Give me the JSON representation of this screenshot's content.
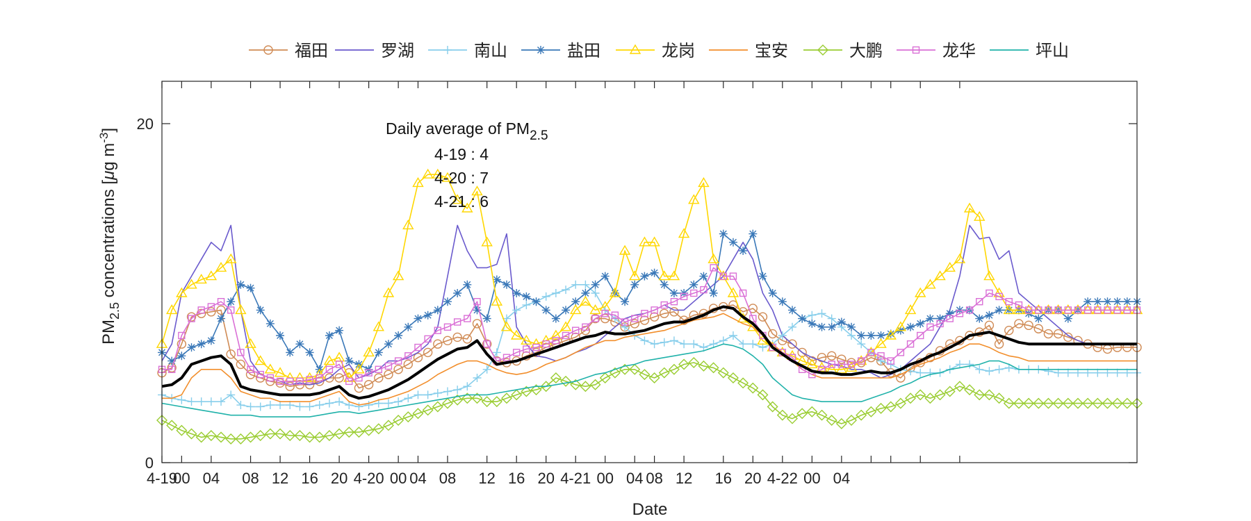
{
  "chart_data": {
    "type": "line",
    "xlabel": "Date",
    "ylabel_prefix": "PM",
    "ylabel_sub": "2.5",
    "ylabel_suffix": " concentrations [",
    "ylabel_unit_mu": "μ",
    "ylabel_unit_rest": "g m",
    "ylabel_unit_exp": "-3",
    "ylabel_close": "]",
    "ylim": [
      0,
      22.5
    ],
    "yticks": [
      0,
      20
    ],
    "ytick_labels": [
      "0",
      "20"
    ],
    "xlim": [
      0,
      99
    ],
    "x_step_hours": 1,
    "xtick_positions": [
      0,
      2,
      5,
      9,
      12,
      15,
      18,
      21,
      24,
      26,
      29,
      33,
      36,
      39,
      42,
      45,
      48,
      50,
      53,
      57,
      60,
      63,
      66,
      69,
      72,
      74,
      77,
      81
    ],
    "xtick_labels": [
      "4-19",
      "00",
      "04",
      "08",
      "12",
      "16",
      "20",
      "4-20",
      "00",
      "04",
      "08",
      "12",
      "16",
      "20",
      "4-21",
      "00",
      "04",
      "08",
      "12",
      "16",
      "20",
      "4-22",
      "00",
      "04",
      "",
      "",
      "",
      ""
    ],
    "annotation": {
      "line1_prefix": "Daily average of PM",
      "line1_sub": "2.5",
      "entries": [
        "4-19 : 4",
        "4-20 : 7",
        "4-21 : 6"
      ]
    },
    "series": [
      {
        "name": "福田",
        "color": "#D08B55",
        "marker": "circle",
        "marker_every": 1,
        "values": [
          5.3,
          5.6,
          7.0,
          8.6,
          8.8,
          8.9,
          9.0,
          6.4,
          5.8,
          5.2,
          5.0,
          4.8,
          4.7,
          4.5,
          4.6,
          4.6,
          4.8,
          5.0,
          5.0,
          5.3,
          4.4,
          4.6,
          5.0,
          5.2,
          5.5,
          5.8,
          6.2,
          6.5,
          7.0,
          7.2,
          7.4,
          7.3,
          8.2,
          7.0,
          6.0,
          5.9,
          6.0,
          6.3,
          6.5,
          6.8,
          7.0,
          7.2,
          7.4,
          7.8,
          8.5,
          8.5,
          8.3,
          8.0,
          8.2,
          8.4,
          8.6,
          8.8,
          8.9,
          8.4,
          8.7,
          8.8,
          9.1,
          9.2,
          9.3,
          8.9,
          9.1,
          8.6,
          7.6,
          7.2,
          7.0,
          6.5,
          6.0,
          6.2,
          6.3,
          6.1,
          5.9,
          5.9,
          6.2,
          6.0,
          5.3,
          5.0,
          5.6,
          5.9,
          6.2,
          6.6,
          7.0,
          7.2,
          7.5,
          7.7,
          8.1,
          7.0,
          7.8,
          8.2,
          8.1,
          7.9,
          7.6,
          7.6,
          7.4,
          7.2,
          7.0,
          6.8,
          6.7,
          6.8,
          6.8,
          6.8
        ]
      },
      {
        "name": "罗湖",
        "color": "#6A5ACD",
        "marker": "none",
        "values": [
          6.0,
          7.0,
          10.0,
          11.0,
          12.0,
          13.0,
          12.5,
          14.0,
          9.0,
          6.0,
          5.2,
          5.0,
          4.8,
          4.6,
          4.7,
          4.6,
          4.7,
          5.0,
          5.5,
          5.8,
          5.0,
          5.2,
          5.5,
          6.0,
          6.0,
          6.2,
          6.5,
          7.0,
          8.0,
          11.0,
          14.0,
          12.5,
          11.5,
          11.5,
          11.7,
          13.5,
          8.0,
          7.0,
          6.3,
          6.2,
          6.0,
          6.2,
          6.5,
          6.7,
          7.0,
          7.5,
          8.0,
          8.5,
          8.7,
          8.8,
          9.0,
          9.3,
          9.0,
          9.0,
          9.5,
          10.0,
          10.5,
          11.0,
          12.0,
          13.0,
          12.0,
          10.0,
          9.0,
          7.5,
          7.0,
          6.5,
          6.2,
          6.0,
          5.8,
          5.7,
          5.5,
          5.5,
          5.3,
          5.0,
          5.2,
          5.5,
          6.0,
          6.5,
          7.0,
          8.0,
          9.0,
          11.0,
          14.0,
          13.2,
          13.3,
          12.0,
          12.5,
          10.0,
          9.5,
          9.0,
          8.5,
          8.0,
          7.5,
          7.2,
          7.0,
          7.0,
          7.0,
          7.0,
          7.0,
          7.0
        ]
      },
      {
        "name": "南山",
        "color": "#87CEEB",
        "marker": "plus",
        "marker_every": 1,
        "values": [
          4.0,
          3.8,
          3.7,
          3.6,
          3.6,
          3.6,
          3.6,
          4.0,
          3.4,
          3.3,
          3.3,
          3.4,
          3.4,
          3.4,
          3.3,
          3.3,
          3.4,
          3.5,
          3.6,
          3.4,
          3.3,
          3.4,
          3.5,
          3.5,
          3.6,
          3.8,
          4.0,
          4.0,
          4.1,
          4.2,
          4.3,
          4.5,
          5.0,
          5.5,
          6.5,
          8.5,
          9.0,
          9.3,
          9.5,
          9.8,
          10.0,
          10.2,
          10.5,
          10.5,
          10.0,
          9.0,
          8.5,
          8.0,
          7.5,
          7.2,
          7.0,
          7.1,
          7.2,
          7.0,
          7.0,
          6.8,
          7.0,
          7.2,
          7.5,
          7.0,
          7.0,
          6.8,
          7.0,
          7.5,
          8.0,
          8.5,
          8.7,
          8.8,
          8.5,
          8.0,
          7.5,
          7.0,
          6.5,
          6.0,
          5.8,
          5.5,
          5.4,
          5.3,
          5.3,
          5.3,
          5.5,
          5.8,
          5.8,
          5.5,
          5.4,
          5.5,
          5.6,
          5.5,
          5.5,
          5.5,
          5.4,
          5.3,
          5.3,
          5.3,
          5.3,
          5.3,
          5.3,
          5.3,
          5.3,
          5.3
        ]
      },
      {
        "name": "盐田",
        "color": "#3A78B8",
        "marker": "star",
        "marker_every": 1,
        "values": [
          6.5,
          6.0,
          6.3,
          6.8,
          7.0,
          7.2,
          8.5,
          9.5,
          10.5,
          10.3,
          9.0,
          8.2,
          7.5,
          6.5,
          7.0,
          6.5,
          5.5,
          7.5,
          7.8,
          6.0,
          5.8,
          5.5,
          6.5,
          7.0,
          7.5,
          8.0,
          8.5,
          8.7,
          9.0,
          9.5,
          10.0,
          10.5,
          9.0,
          8.5,
          10.8,
          10.5,
          10.0,
          9.8,
          9.5,
          9.0,
          8.5,
          9.0,
          9.5,
          10.0,
          10.5,
          11.0,
          10.0,
          9.5,
          10.5,
          11.0,
          11.2,
          10.5,
          10.0,
          10.0,
          10.5,
          11.0,
          10.0,
          13.5,
          13.0,
          12.5,
          13.5,
          11.0,
          10.0,
          9.5,
          9.0,
          8.5,
          8.2,
          8.0,
          8.0,
          8.3,
          8.0,
          7.5,
          7.5,
          7.5,
          7.6,
          7.8,
          8.0,
          8.2,
          8.5,
          8.5,
          8.8,
          9.0,
          9.0,
          8.5,
          8.7,
          9.0,
          9.0,
          9.0,
          8.8,
          8.5,
          9.0,
          9.0,
          8.5,
          9.0,
          9.5,
          9.5,
          9.5,
          9.5,
          9.5,
          9.5
        ]
      },
      {
        "name": "龙岗",
        "color": "#FFD700",
        "marker": "triangle",
        "marker_every": 1,
        "values": [
          7.0,
          9.0,
          10.0,
          10.5,
          10.8,
          11.0,
          11.5,
          12.0,
          9.0,
          7.0,
          6.0,
          5.5,
          5.3,
          5.0,
          5.0,
          5.0,
          5.2,
          6.0,
          6.2,
          5.0,
          5.5,
          6.5,
          8.0,
          10.0,
          11.0,
          14.0,
          16.5,
          17.0,
          17.0,
          16.8,
          15.5,
          15.0,
          16.0,
          13.0,
          9.5,
          8.0,
          7.5,
          7.2,
          7.0,
          7.2,
          7.5,
          8.0,
          9.0,
          9.5,
          9.0,
          9.2,
          10.0,
          12.5,
          11.0,
          13.0,
          13.0,
          11.0,
          11.0,
          13.5,
          15.5,
          16.5,
          12.0,
          11.0,
          10.0,
          8.5,
          8.0,
          7.2,
          6.8,
          6.5,
          6.3,
          6.0,
          5.8,
          5.6,
          5.5,
          5.5,
          5.6,
          6.0,
          6.5,
          7.0,
          7.5,
          8.0,
          9.0,
          10.0,
          10.5,
          11.0,
          11.5,
          12.0,
          15.0,
          14.5,
          11.0,
          10.0,
          9.0,
          9.0,
          9.0,
          9.0,
          9.0,
          9.0,
          9.0,
          9.0,
          9.0,
          9.0,
          9.0,
          9.0,
          9.0,
          9.0
        ]
      },
      {
        "name": "宝安",
        "color": "#F28E2B",
        "marker": "none",
        "values": [
          3.8,
          3.8,
          4.0,
          5.0,
          5.5,
          5.5,
          5.5,
          5.0,
          4.2,
          4.0,
          3.8,
          3.8,
          3.6,
          3.6,
          3.6,
          3.6,
          3.8,
          4.0,
          4.2,
          3.6,
          3.4,
          3.5,
          3.7,
          3.8,
          4.0,
          4.2,
          4.5,
          4.8,
          5.2,
          5.5,
          5.8,
          6.0,
          6.0,
          5.8,
          5.5,
          5.3,
          5.2,
          5.3,
          5.5,
          5.8,
          6.0,
          6.2,
          6.5,
          6.8,
          7.0,
          7.2,
          7.2,
          7.4,
          7.5,
          7.6,
          7.7,
          7.8,
          8.0,
          8.2,
          8.4,
          8.5,
          8.6,
          8.8,
          8.5,
          8.2,
          8.0,
          7.5,
          7.0,
          6.5,
          6.0,
          5.5,
          5.2,
          5.0,
          5.0,
          5.0,
          5.0,
          5.0,
          5.0,
          5.0,
          5.0,
          5.2,
          5.5,
          5.8,
          6.0,
          6.2,
          6.5,
          6.7,
          7.0,
          7.0,
          6.8,
          6.5,
          6.3,
          6.2,
          6.0,
          6.0,
          6.0,
          6.0,
          6.0,
          6.0,
          6.0,
          6.0,
          6.0,
          6.0,
          6.0,
          6.0
        ]
      },
      {
        "name": "大鹏",
        "color": "#9ACD32",
        "marker": "diamond",
        "marker_every": 1,
        "values": [
          2.5,
          2.2,
          1.9,
          1.7,
          1.5,
          1.6,
          1.5,
          1.4,
          1.4,
          1.5,
          1.6,
          1.7,
          1.7,
          1.6,
          1.6,
          1.5,
          1.5,
          1.6,
          1.7,
          1.8,
          1.8,
          1.9,
          2.0,
          2.2,
          2.5,
          2.7,
          2.9,
          3.1,
          3.3,
          3.5,
          3.7,
          3.8,
          3.8,
          3.6,
          3.6,
          3.8,
          4.0,
          4.2,
          4.3,
          4.5,
          5.0,
          4.8,
          4.6,
          4.5,
          4.6,
          5.0,
          5.3,
          5.5,
          5.5,
          5.2,
          5.0,
          5.3,
          5.5,
          5.8,
          5.9,
          5.7,
          5.6,
          5.3,
          5.0,
          4.7,
          4.4,
          4.0,
          3.3,
          2.8,
          2.6,
          2.9,
          3.0,
          2.8,
          2.5,
          2.3,
          2.5,
          2.8,
          3.0,
          3.2,
          3.3,
          3.5,
          3.8,
          4.0,
          3.8,
          4.0,
          4.2,
          4.5,
          4.3,
          4.0,
          4.0,
          3.8,
          3.5,
          3.5,
          3.5,
          3.5,
          3.5,
          3.5,
          3.5,
          3.5,
          3.5,
          3.5,
          3.5,
          3.5,
          3.5,
          3.5
        ]
      },
      {
        "name": "龙华",
        "color": "#DA70D6",
        "marker": "square",
        "marker_every": 1,
        "values": [
          5.5,
          5.5,
          7.5,
          8.5,
          9.0,
          9.2,
          9.5,
          9.0,
          6.5,
          5.5,
          5.2,
          5.0,
          4.8,
          4.8,
          4.8,
          4.9,
          5.0,
          5.5,
          5.8,
          4.8,
          5.0,
          5.3,
          5.5,
          5.7,
          6.0,
          6.3,
          6.8,
          7.3,
          7.8,
          8.0,
          8.3,
          8.5,
          9.5,
          7.0,
          6.0,
          6.2,
          6.5,
          6.7,
          6.8,
          7.0,
          7.2,
          7.5,
          7.8,
          8.0,
          8.5,
          8.8,
          8.7,
          8.3,
          8.5,
          8.8,
          9.0,
          9.3,
          9.5,
          9.8,
          10.0,
          10.2,
          11.5,
          11.0,
          11.0,
          10.0,
          8.5,
          7.5,
          6.8,
          6.5,
          6.2,
          5.5,
          5.2,
          5.5,
          5.8,
          5.8,
          5.8,
          6.0,
          6.5,
          6.3,
          6.0,
          6.5,
          7.0,
          7.5,
          8.0,
          8.2,
          8.5,
          8.8,
          9.0,
          9.5,
          10.0,
          9.8,
          9.5,
          9.3,
          9.0,
          9.0,
          9.0,
          9.0,
          9.0,
          9.0,
          9.0,
          9.0,
          9.0,
          9.0,
          9.0,
          9.0
        ]
      },
      {
        "name": "坪山",
        "color": "#20B2AA",
        "marker": "none",
        "values": [
          3.5,
          3.4,
          3.3,
          3.2,
          3.1,
          3.0,
          2.9,
          2.8,
          2.8,
          2.8,
          2.7,
          2.7,
          2.7,
          2.7,
          2.7,
          2.7,
          2.8,
          2.9,
          3.0,
          3.0,
          2.9,
          3.0,
          3.1,
          3.2,
          3.3,
          3.4,
          3.5,
          3.6,
          3.7,
          3.8,
          3.9,
          4.0,
          4.0,
          4.0,
          4.1,
          4.2,
          4.3,
          4.4,
          4.5,
          4.5,
          4.6,
          4.7,
          4.8,
          5.0,
          5.2,
          5.3,
          5.5,
          5.7,
          5.8,
          6.0,
          6.1,
          6.2,
          6.3,
          6.4,
          6.5,
          6.6,
          6.8,
          7.0,
          6.9,
          6.7,
          6.3,
          5.8,
          5.0,
          4.5,
          4.0,
          3.8,
          3.7,
          3.6,
          3.6,
          3.6,
          3.6,
          3.6,
          3.8,
          4.0,
          4.2,
          4.5,
          4.7,
          5.0,
          5.2,
          5.3,
          5.5,
          5.6,
          5.7,
          5.8,
          6.0,
          6.0,
          5.8,
          5.5,
          5.5,
          5.5,
          5.5,
          5.5,
          5.5,
          5.5,
          5.5,
          5.5,
          5.5,
          5.5,
          5.5,
          5.5
        ]
      },
      {
        "name": "",
        "color": "#000000",
        "marker": "none",
        "bold": true,
        "values": [
          4.5,
          4.6,
          5.0,
          5.8,
          6.0,
          6.2,
          6.3,
          5.8,
          4.5,
          4.3,
          4.2,
          4.1,
          4.0,
          4.0,
          4.0,
          4.0,
          4.1,
          4.3,
          4.5,
          4.0,
          3.8,
          3.9,
          4.1,
          4.3,
          4.6,
          4.9,
          5.3,
          5.7,
          6.1,
          6.4,
          6.7,
          6.8,
          7.2,
          6.4,
          5.8,
          5.9,
          6.0,
          6.2,
          6.4,
          6.6,
          6.8,
          7.0,
          7.2,
          7.4,
          7.5,
          7.7,
          7.6,
          7.6,
          7.7,
          7.8,
          8.0,
          8.2,
          8.3,
          8.3,
          8.5,
          8.7,
          9.0,
          9.2,
          9.1,
          8.6,
          8.2,
          7.6,
          6.8,
          6.4,
          6.0,
          5.7,
          5.4,
          5.3,
          5.3,
          5.2,
          5.2,
          5.3,
          5.4,
          5.3,
          5.3,
          5.5,
          5.8,
          6.0,
          6.3,
          6.5,
          6.8,
          7.1,
          7.5,
          7.6,
          7.7,
          7.5,
          7.3,
          7.1,
          7.0,
          7.0,
          7.0,
          7.0,
          7.0,
          7.0,
          7.0,
          7.0,
          7.0,
          7.0,
          7.0,
          7.0
        ]
      }
    ]
  }
}
